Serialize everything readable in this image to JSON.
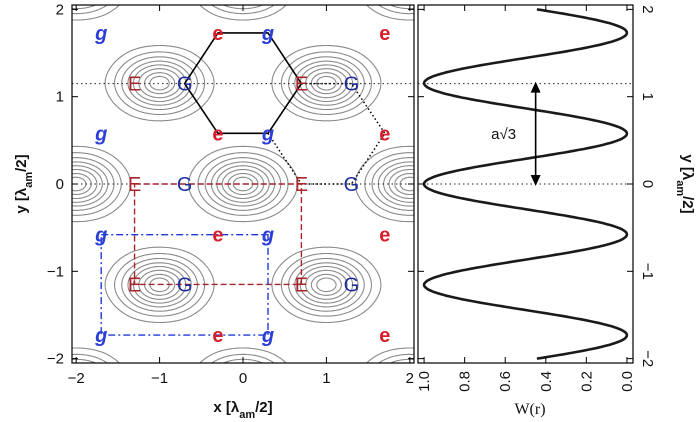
{
  "chart_data": [
    {
      "type": "contour",
      "xlabel": "x [λam/2]",
      "ylabel": "y [λam/2]",
      "xlabel_main": "x [λ",
      "xlabel_sub": "am",
      "xlabel_tail": "/2]",
      "ylabel_main": "y [λ",
      "ylabel_sub": "am",
      "ylabel_tail": "/2]",
      "xlim": [
        -2.05,
        2.05
      ],
      "ylim": [
        -2.05,
        2.05
      ],
      "xticks": [
        {
          "v": -2,
          "label": "−2"
        },
        {
          "v": -1,
          "label": "−1"
        },
        {
          "v": 0,
          "label": "0"
        },
        {
          "v": 1,
          "label": "1"
        },
        {
          "v": 2,
          "label": "2"
        }
      ],
      "yticks": [
        {
          "v": -2,
          "label": "−2"
        },
        {
          "v": -1,
          "label": "−1"
        },
        {
          "v": 0,
          "label": "0"
        },
        {
          "v": 1,
          "label": "1"
        },
        {
          "v": 2,
          "label": "2"
        }
      ],
      "contour_levels": [
        0.35,
        0.5,
        0.62,
        0.72,
        0.8,
        0.87,
        0.93,
        0.97
      ],
      "period_x": 2,
      "period_y": 2.3094,
      "colors": {
        "G": "#1d2f9e",
        "g": "#2b3fd6",
        "E": "#a8232a",
        "e": "#d81e2c",
        "contour": "#8a8a8a",
        "blue_cell": "#1e3ad6",
        "red_cell": "#a8232a"
      },
      "labels": [
        {
          "text": "g",
          "x": -1.7,
          "y": 1.73,
          "cls": "g"
        },
        {
          "text": "e",
          "x": -0.3,
          "y": 1.73,
          "cls": "e"
        },
        {
          "text": "g",
          "x": 0.3,
          "y": 1.73,
          "cls": "g"
        },
        {
          "text": "e",
          "x": 1.7,
          "y": 1.73,
          "cls": "e"
        },
        {
          "text": "E",
          "x": -1.3,
          "y": 1.15,
          "cls": "E"
        },
        {
          "text": "G",
          "x": -0.7,
          "y": 1.15,
          "cls": "G"
        },
        {
          "text": "E",
          "x": 0.7,
          "y": 1.15,
          "cls": "E"
        },
        {
          "text": "G",
          "x": 1.3,
          "y": 1.15,
          "cls": "G"
        },
        {
          "text": "g",
          "x": -1.7,
          "y": 0.58,
          "cls": "g"
        },
        {
          "text": "e",
          "x": -0.3,
          "y": 0.58,
          "cls": "e"
        },
        {
          "text": "g",
          "x": 0.3,
          "y": 0.58,
          "cls": "g"
        },
        {
          "text": "e",
          "x": 1.7,
          "y": 0.58,
          "cls": "e"
        },
        {
          "text": "E",
          "x": -1.3,
          "y": 0.0,
          "cls": "E"
        },
        {
          "text": "G",
          "x": -0.7,
          "y": 0.0,
          "cls": "G"
        },
        {
          "text": "E",
          "x": 0.7,
          "y": 0.0,
          "cls": "E"
        },
        {
          "text": "G",
          "x": 1.3,
          "y": 0.0,
          "cls": "G"
        },
        {
          "text": "g",
          "x": -1.7,
          "y": -0.58,
          "cls": "g"
        },
        {
          "text": "e",
          "x": -0.3,
          "y": -0.58,
          "cls": "e"
        },
        {
          "text": "g",
          "x": 0.3,
          "y": -0.58,
          "cls": "g"
        },
        {
          "text": "e",
          "x": 1.7,
          "y": -0.58,
          "cls": "e"
        },
        {
          "text": "E",
          "x": -1.3,
          "y": -1.15,
          "cls": "E"
        },
        {
          "text": "G",
          "x": -0.7,
          "y": -1.15,
          "cls": "G"
        },
        {
          "text": "E",
          "x": 0.7,
          "y": -1.15,
          "cls": "E"
        },
        {
          "text": "G",
          "x": 1.3,
          "y": -1.15,
          "cls": "G"
        },
        {
          "text": "g",
          "x": -1.7,
          "y": -1.73,
          "cls": "g"
        },
        {
          "text": "e",
          "x": -0.3,
          "y": -1.73,
          "cls": "e"
        },
        {
          "text": "g",
          "x": 0.3,
          "y": -1.73,
          "cls": "g"
        },
        {
          "text": "e",
          "x": 1.7,
          "y": -1.73,
          "cls": "e"
        }
      ],
      "hexagon": [
        [
          -0.7,
          1.15
        ],
        [
          -0.3,
          1.73
        ],
        [
          0.3,
          1.73
        ],
        [
          0.7,
          1.15
        ],
        [
          0.3,
          0.58
        ],
        [
          -0.3,
          0.58
        ]
      ],
      "dotted_path": [
        [
          0.7,
          1.15
        ],
        [
          1.3,
          1.15
        ],
        [
          1.7,
          0.58
        ],
        [
          1.3,
          0.0
        ],
        [
          0.7,
          0.0
        ]
      ],
      "dotted_inner": [
        [
          0.3,
          0.58
        ],
        [
          0.7,
          0.0
        ]
      ],
      "red_rect": {
        "x0": -1.3,
        "x1": 0.7,
        "y0": -1.15,
        "y1": 0.0
      },
      "blue_rect": {
        "x0": -1.7,
        "x1": 0.3,
        "y0": -1.73,
        "y1": -0.58
      },
      "hlines": [
        1.15,
        0.0
      ]
    },
    {
      "type": "line",
      "xlabel": "W(r)",
      "ylabel": "y [λam/2]",
      "ylabel_main": "y [λ",
      "ylabel_sub": "am",
      "ylabel_tail": "/2]",
      "xlim": [
        1.03,
        -0.03
      ],
      "ylim": [
        -2.05,
        2.05
      ],
      "xticks": [
        {
          "v": 1.0,
          "label": "1.0"
        },
        {
          "v": 0.8,
          "label": "0.8"
        },
        {
          "v": 0.6,
          "label": "0.6"
        },
        {
          "v": 0.4,
          "label": "0.4"
        },
        {
          "v": 0.2,
          "label": "0.2"
        },
        {
          "v": 0.0,
          "label": "0.0"
        }
      ],
      "yticks": [
        {
          "v": -2,
          "label": "−2"
        },
        {
          "v": -1,
          "label": "−1"
        },
        {
          "v": 0,
          "label": "0"
        },
        {
          "v": 1,
          "label": "1"
        },
        {
          "v": 2,
          "label": "2"
        }
      ],
      "series": [
        {
          "y_range": [
            -2.0,
            2.0
          ],
          "formula": "W = 0.5 + 0.5*cos(2*pi*y/1.1547)",
          "sample_points": [
            {
              "y": -1.73,
              "W": 0.0
            },
            {
              "y": -1.15,
              "W": 1.0
            },
            {
              "y": -0.58,
              "W": 0.0
            },
            {
              "y": 0.0,
              "W": 1.0
            },
            {
              "y": 0.58,
              "W": 0.0
            },
            {
              "y": 1.15,
              "W": 1.0
            },
            {
              "y": 1.73,
              "W": 0.0
            }
          ]
        }
      ],
      "hlines": [
        1.15,
        0.0
      ],
      "annotation": {
        "text": "a√3",
        "y_from": 0.0,
        "y_to": 1.15,
        "x": 0.45
      }
    }
  ]
}
